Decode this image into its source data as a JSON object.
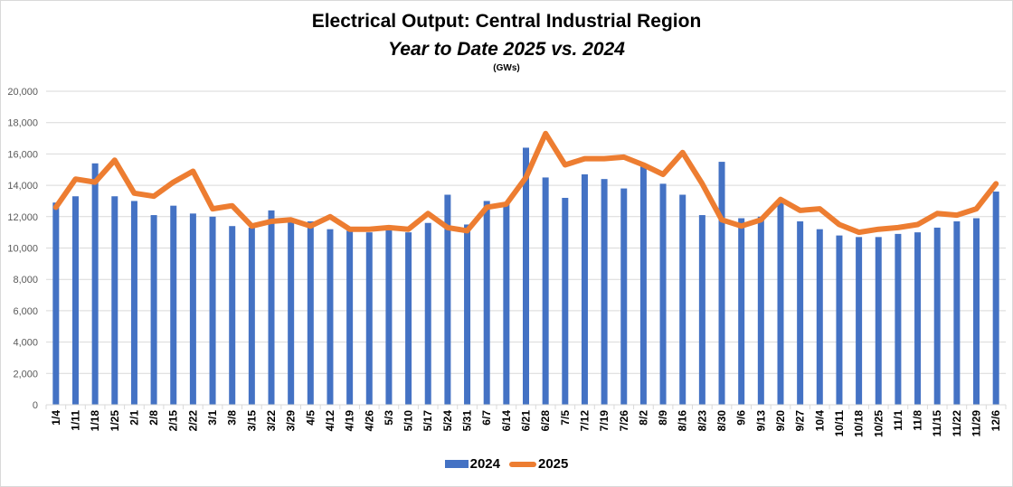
{
  "chart_data": {
    "type": "bar",
    "title": "Electrical Output:  Central Industrial Region",
    "subtitle": "Year to Date 2025 vs. 2024",
    "units_note": "(GWs)",
    "xlabel": "",
    "ylabel": "",
    "ylim": [
      0,
      20000
    ],
    "yticks": [
      0,
      2000,
      4000,
      6000,
      8000,
      10000,
      12000,
      14000,
      16000,
      18000,
      20000
    ],
    "ytick_labels": [
      "0",
      "2,000",
      "4,000",
      "6,000",
      "8,000",
      "10,000",
      "12,000",
      "14,000",
      "16,000",
      "18,000",
      "20,000"
    ],
    "grid": true,
    "legend_position": "bottom",
    "categories": [
      "1/4",
      "1/11",
      "1/18",
      "1/25",
      "2/1",
      "2/8",
      "2/15",
      "2/22",
      "3/1",
      "3/8",
      "3/15",
      "3/22",
      "3/29",
      "4/5",
      "4/12",
      "4/19",
      "4/26",
      "5/3",
      "5/10",
      "5/17",
      "5/24",
      "5/31",
      "6/7",
      "6/14",
      "6/21",
      "6/28",
      "7/5",
      "7/12",
      "7/19",
      "7/26",
      "8/2",
      "8/9",
      "8/16",
      "8/23",
      "8/30",
      "9/6",
      "9/13",
      "9/20",
      "9/27",
      "10/4",
      "10/11",
      "10/18",
      "10/25",
      "11/1",
      "11/8",
      "11/15",
      "11/22",
      "11/29",
      "12/6"
    ],
    "series": [
      {
        "name": "2024",
        "type": "bar",
        "color": "#4472c4",
        "values": [
          12900,
          13300,
          15400,
          13300,
          13000,
          12100,
          12700,
          12200,
          12000,
          11400,
          11300,
          12400,
          11700,
          11700,
          11200,
          11100,
          11000,
          11200,
          11000,
          11600,
          13400,
          11500,
          13000,
          12800,
          16400,
          14500,
          13200,
          14700,
          14400,
          13800,
          15200,
          14100,
          13400,
          12100,
          15500,
          11900,
          12000,
          12900,
          11700,
          11200,
          10800,
          10700,
          10700,
          10900,
          11000,
          11300,
          11700,
          11900,
          13600
        ]
      },
      {
        "name": "2025",
        "type": "line",
        "color": "#ed7d31",
        "values": [
          12600,
          14400,
          14200,
          15600,
          13500,
          13300,
          14200,
          14900,
          12500,
          12700,
          11400,
          11700,
          11800,
          11400,
          12000,
          11200,
          11200,
          11300,
          11200,
          12200,
          11300,
          11100,
          12600,
          12800,
          14500,
          17300,
          15300,
          15700,
          15700,
          15800,
          15300,
          14700,
          16100,
          14100,
          11800,
          11400,
          11800,
          13100,
          12400,
          12500,
          11500,
          11000,
          11200,
          11300,
          11500,
          12200,
          12100,
          12500,
          14100
        ]
      }
    ]
  }
}
